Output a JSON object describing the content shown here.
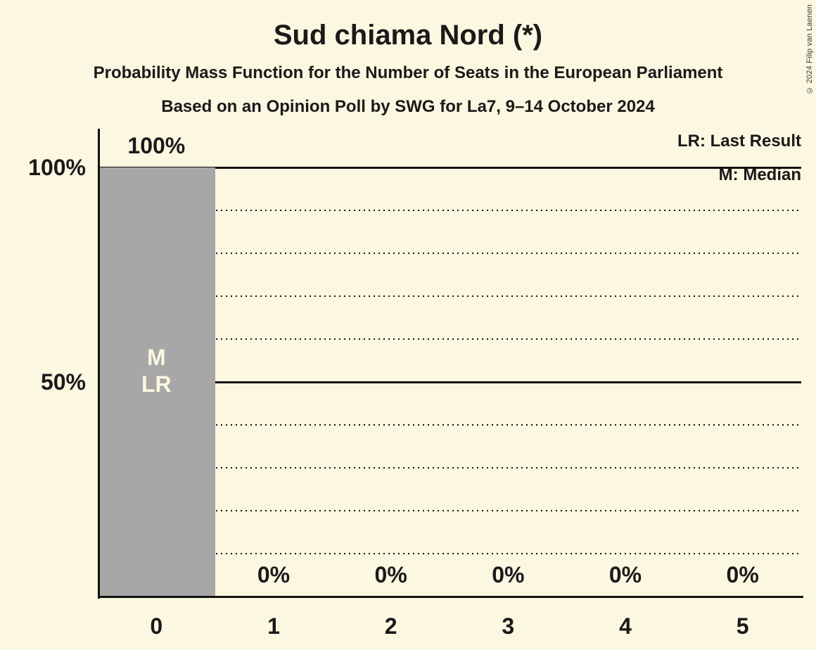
{
  "page": {
    "background_color": "#FBF7E0",
    "text_color": "#1A1A1A"
  },
  "header": {
    "title": "Sud chiama Nord (*)",
    "subtitle": "Probability Mass Function for the Number of Seats in the European Parliament",
    "poll_line": "Based on an Opinion Poll by SWG for La7, 9–14 October 2024"
  },
  "legend": {
    "lr_label": "LR: Last Result",
    "m_label": "M: Median"
  },
  "copyright": "© 2024 Filip van Laenen",
  "chart_data": {
    "type": "bar",
    "title": "Sud chiama Nord (*)",
    "subtitle": "Probability Mass Function for the Number of Seats in the European Parliament",
    "based_on": "Based on an Opinion Poll by SWG for La7, 9–14 October 2024",
    "categories": [
      "0",
      "1",
      "2",
      "3",
      "4",
      "5"
    ],
    "values": [
      100,
      0,
      0,
      0,
      0,
      0
    ],
    "value_labels": [
      "100%",
      "0%",
      "0%",
      "0%",
      "0%",
      "0%"
    ],
    "ylim": [
      0,
      100
    ],
    "ytick_labels": [
      {
        "value": 100,
        "label": "100%"
      },
      {
        "value": 50,
        "label": "50%"
      }
    ],
    "solid_gridlines_percent": [
      50,
      100
    ],
    "dotted_gridlines_percent": [
      10,
      20,
      30,
      40,
      60,
      70,
      80,
      90
    ],
    "grid_on": true,
    "legend_position": "top-right",
    "legend_entries": [
      "LR: Last Result",
      "M: Median"
    ],
    "median_category": "0",
    "last_result_category": "0",
    "bar_inner_labels": [
      {
        "category_index": 0,
        "lines": [
          "M",
          "LR"
        ]
      }
    ],
    "bar_color": "#A7A7A7",
    "bar_inner_label_color": "#FBF7E0"
  }
}
